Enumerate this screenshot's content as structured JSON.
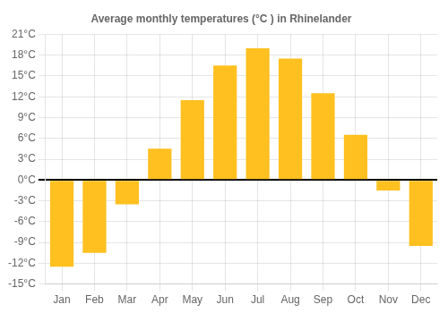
{
  "chart_data": {
    "type": "bar",
    "title": "Average monthly temperatures (°C ) in Rhinelander",
    "categories": [
      "Jan",
      "Feb",
      "Mar",
      "Apr",
      "May",
      "Jun",
      "Jul",
      "Aug",
      "Sep",
      "Oct",
      "Nov",
      "Dec"
    ],
    "values": [
      -12.5,
      -10.5,
      -3.5,
      4.5,
      11.5,
      16.5,
      19.0,
      17.5,
      12.5,
      6.5,
      -1.5,
      -9.5
    ],
    "color": "#FFC020",
    "ylim": [
      -15,
      21
    ],
    "yticks": [
      {
        "value": -15,
        "label": "-15°C"
      },
      {
        "value": -12,
        "label": "-12°C"
      },
      {
        "value": -9,
        "label": "-9°C"
      },
      {
        "value": -6,
        "label": "-6°C"
      },
      {
        "value": -3,
        "label": "-3°C"
      },
      {
        "value": 0,
        "label": "0°C"
      },
      {
        "value": 3,
        "label": "3°C"
      },
      {
        "value": 6,
        "label": "6°C"
      },
      {
        "value": 9,
        "label": "9°C"
      },
      {
        "value": 12,
        "label": "12°C"
      },
      {
        "value": 15,
        "label": "15°C"
      },
      {
        "value": 18,
        "label": "18°C"
      },
      {
        "value": 21,
        "label": "21°C"
      }
    ],
    "grid": true
  }
}
